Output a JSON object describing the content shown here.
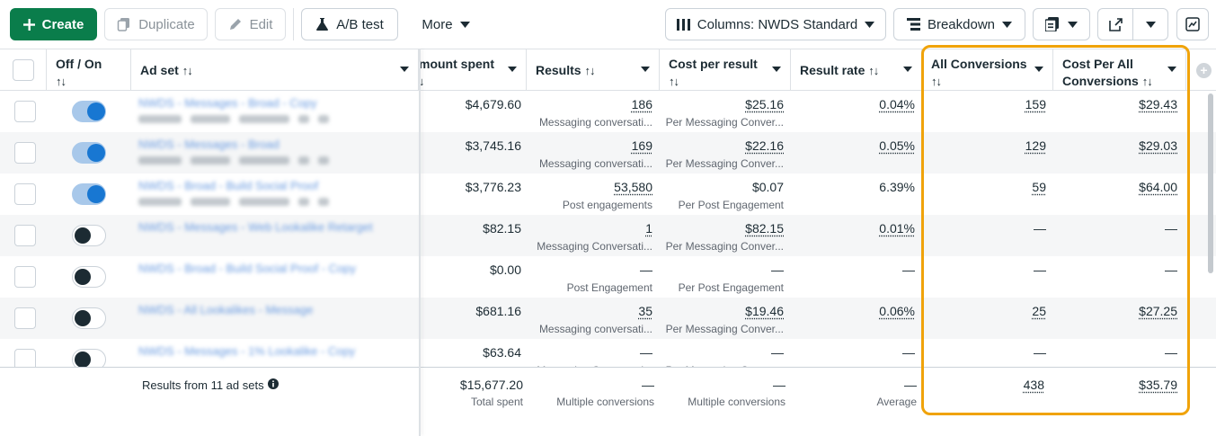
{
  "toolbar": {
    "create_label": "Create",
    "duplicate_label": "Duplicate",
    "edit_label": "Edit",
    "ab_test_label": "A/B test",
    "more_label": "More",
    "columns_label": "Columns: NWDS Standard",
    "breakdown_label": "Breakdown"
  },
  "headers": {
    "off_on": "Off / On",
    "ad_set": "Ad set",
    "amount_spent": "mount spent",
    "results": "Results",
    "cost_per_result": "Cost per result",
    "result_rate": "Result rate",
    "all_conversions": "All Conversions",
    "cost_per_all_conversions": "Cost Per All Conversions",
    "sort_glyph": "↑↓"
  },
  "rows": [
    {
      "name": "NWDS - Messages - Broad - Copy",
      "on": true,
      "spent": "$4,679.60",
      "results": "186",
      "results_sub": "Messaging conversati...",
      "cpr": "$25.16",
      "cpr_sub": "Per Messaging Conver...",
      "rate": "0.04%",
      "allconv": "159",
      "cpac": "$29.43",
      "has_sub": true
    },
    {
      "name": "NWDS - Messages - Broad",
      "on": true,
      "spent": "$3,745.16",
      "results": "169",
      "results_sub": "Messaging conversati...",
      "cpr": "$22.16",
      "cpr_sub": "Per Messaging Conver...",
      "rate": "0.05%",
      "allconv": "129",
      "cpac": "$29.03",
      "has_sub": true
    },
    {
      "name": "NWDS - Broad - Build Social Proof",
      "on": true,
      "spent": "$3,776.23",
      "results": "53,580",
      "results_sub": "Post engagements",
      "cpr": "$0.07",
      "cpr_sub": "Per Post Engagement",
      "rate": "6.39%",
      "allconv": "59",
      "cpac": "$64.00",
      "has_sub": true
    },
    {
      "name": "NWDS - Messages - Web Lookalike Retarget",
      "on": false,
      "spent": "$82.15",
      "results": "1",
      "results_sub": "Messaging Conversati...",
      "cpr": "$82.15",
      "cpr_sub": "Per Messaging Conver...",
      "rate": "0.01%",
      "allconv": "—",
      "cpac": "—",
      "has_sub": false
    },
    {
      "name": "NWDS - Broad - Build Social Proof - Copy",
      "on": false,
      "spent": "$0.00",
      "results": "—",
      "results_sub": "Post Engagement",
      "cpr": "—",
      "cpr_sub": "Per Post Engagement",
      "rate": "—",
      "allconv": "—",
      "cpac": "—",
      "has_sub": false
    },
    {
      "name": "NWDS - All Lookalikes - Message",
      "on": false,
      "spent": "$681.16",
      "results": "35",
      "results_sub": "Messaging conversati...",
      "cpr": "$19.46",
      "cpr_sub": "Per Messaging Conver...",
      "rate": "0.06%",
      "allconv": "25",
      "cpac": "$27.25",
      "has_sub": false
    },
    {
      "name": "NWDS - Messages - 1% Lookalike - Copy",
      "on": false,
      "spent": "$63.64",
      "results": "—",
      "results_sub": "Messaging Conversati...",
      "cpr": "—",
      "cpr_sub": "Per Messaging Conver...",
      "rate": "—",
      "allconv": "—",
      "cpac": "—",
      "has_sub": false
    }
  ],
  "footer": {
    "summary": "Results from 11 ad sets",
    "spent": "$15,677.20",
    "spent_sub": "Total spent",
    "results": "—",
    "results_sub": "Multiple conversions",
    "cpr": "—",
    "cpr_sub": "Multiple conversions",
    "rate": "—",
    "rate_sub": "Average",
    "allconv": "438",
    "cpac": "$35.79"
  },
  "colors": {
    "create_green": "#0a7d4b",
    "toggle_on": "#1877d2",
    "highlight": "#f0a30a"
  }
}
